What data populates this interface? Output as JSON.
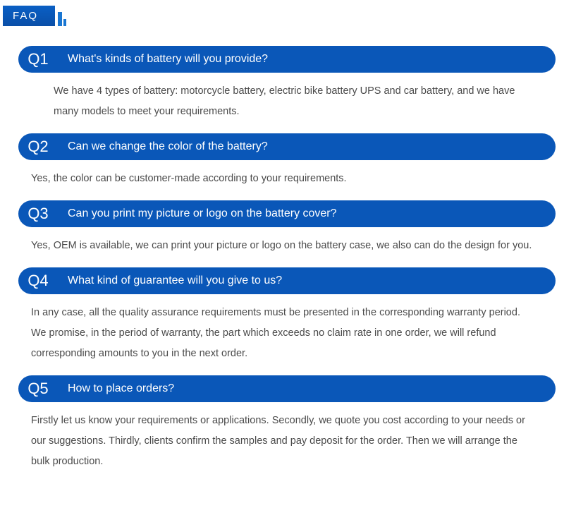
{
  "header": {
    "title": "FAQ"
  },
  "colors": {
    "header_gradient_top": "#0a5fc4",
    "header_gradient_bottom": "#0a4fa8",
    "question_bg": "#0a57b8",
    "question_text": "#ffffff",
    "answer_text": "#4a4a4a",
    "page_bg": "#ffffff",
    "decor_bar": "#1976d2"
  },
  "faq": [
    {
      "num": "Q1",
      "question": "What's kinds of battery will you provide?",
      "answer": "We have 4 types of battery: motorcycle battery, electric bike battery UPS and car battery, and we have many models to meet your requirements."
    },
    {
      "num": "Q2",
      "question": "Can we change the color of the battery?",
      "answer": "Yes, the color can be customer-made according to your requirements."
    },
    {
      "num": "Q3",
      "question": "Can you print my picture or logo on the battery cover?",
      "answer": "Yes, OEM is available, we can print your picture or logo on the battery case, we also can do the design for you."
    },
    {
      "num": "Q4",
      "question": "What kind of guarantee will you give to us?",
      "answer": "In any case, all the quality assurance requirements must be presented in the corresponding warranty period. We promise, in the period of warranty, the part which exceeds no claim rate in one order, we will refund corresponding amounts to you in the next order."
    },
    {
      "num": "Q5",
      "question": "How to place orders?",
      "answer": "Firstly let us know your requirements or applications. Secondly, we quote you cost according to your needs or our suggestions. Thirdly, clients confirm the samples and pay deposit for the order. Then we will arrange the bulk production."
    }
  ]
}
